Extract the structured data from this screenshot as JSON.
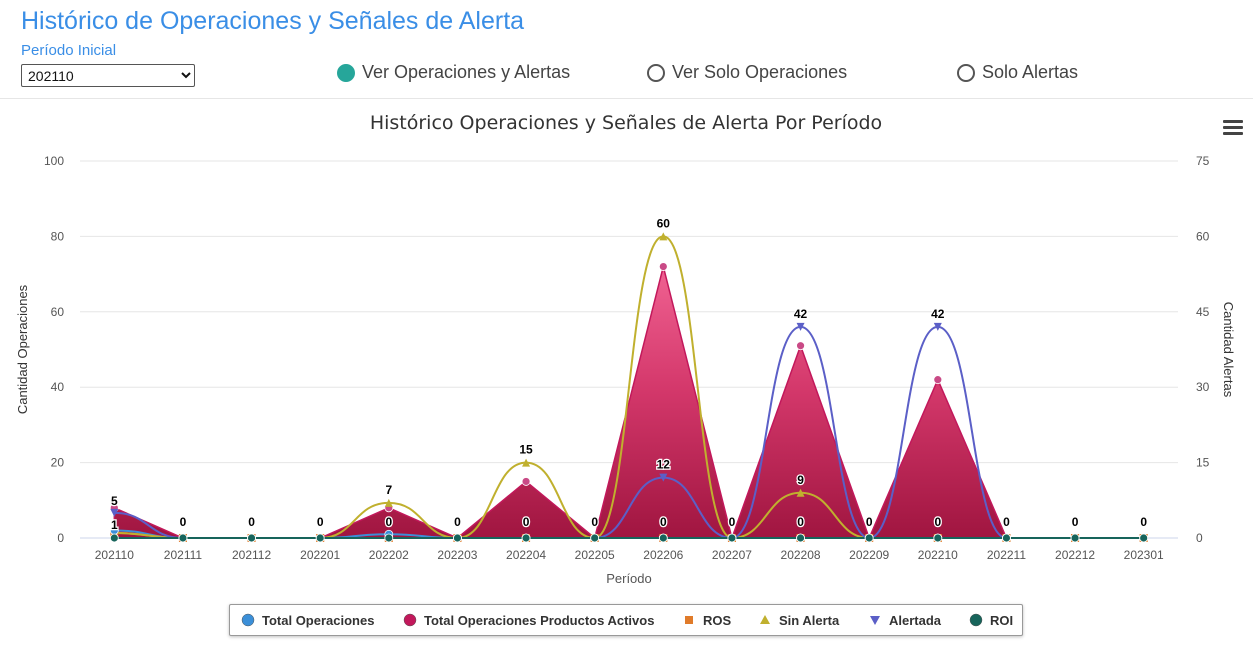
{
  "page": {
    "title": "Histórico de Operaciones y Señales de Alerta",
    "period_label": "Período Inicial",
    "period_selected": "202110"
  },
  "view_options": [
    {
      "label": "Ver Operaciones y Alertas",
      "checked": true
    },
    {
      "label": "Ver Solo Operaciones",
      "checked": false
    },
    {
      "label": "Solo Alertas",
      "checked": false
    }
  ],
  "colors": {
    "title": "#3a8ee6",
    "radio_checked": "#26a69a",
    "total_operaciones": "#3b8fd8",
    "productos_activos": "#c2185b",
    "ros": "#e07b2a",
    "sin_alerta": "#c0b02e",
    "alertada": "#5b5fc7",
    "roi": "#17645b"
  },
  "chart_data": {
    "type": "area",
    "title": "Histórico Operaciones y Señales de Alerta Por Período",
    "xlabel": "Período",
    "ylabel_left": "Cantidad Operaciones",
    "ylabel_right": "Cantidad Alertas",
    "ylim_left": [
      0,
      100
    ],
    "ylim_right": [
      0,
      75
    ],
    "yticks_left": [
      0,
      20,
      40,
      60,
      80,
      100
    ],
    "yticks_right": [
      0,
      15,
      30,
      45,
      60,
      75
    ],
    "grid": true,
    "legend_position": "bottom",
    "categories": [
      "202110",
      "202111",
      "202112",
      "202201",
      "202202",
      "202203",
      "202204",
      "202205",
      "202206",
      "202207",
      "202208",
      "202209",
      "202210",
      "202211",
      "202212",
      "202301"
    ],
    "series": [
      {
        "name": "Total Operaciones",
        "axis": "left",
        "kind": "line",
        "marker": "circle",
        "color_key": "total_operaciones",
        "values": [
          2,
          0,
          0,
          0,
          1,
          0,
          0,
          0,
          0,
          0,
          0,
          0,
          0,
          0,
          0,
          0
        ]
      },
      {
        "name": "Total Operaciones Productos Activos",
        "axis": "left",
        "kind": "area",
        "marker": "circle",
        "color_key": "productos_activos",
        "values": [
          8,
          0,
          0,
          0,
          8,
          0,
          15,
          0,
          72,
          0,
          51,
          0,
          42,
          0,
          0,
          0
        ]
      },
      {
        "name": "ROS",
        "axis": "right",
        "kind": "line",
        "marker": "square",
        "color_key": "ros",
        "values": [
          1,
          0,
          0,
          0,
          0,
          0,
          0,
          0,
          0,
          0,
          0,
          0,
          0,
          0,
          0,
          0
        ]
      },
      {
        "name": "Sin Alerta",
        "axis": "right",
        "kind": "line",
        "marker": "triangle",
        "color_key": "sin_alerta",
        "values": [
          1,
          0,
          0,
          0,
          7,
          0,
          15,
          0,
          60,
          0,
          9,
          0,
          0,
          0,
          0,
          0
        ]
      },
      {
        "name": "Alertada",
        "axis": "right",
        "kind": "line",
        "marker": "triangle-down",
        "color_key": "alertada",
        "values": [
          5,
          0,
          0,
          0,
          0,
          0,
          0,
          0,
          12,
          0,
          42,
          0,
          42,
          0,
          0,
          0
        ]
      },
      {
        "name": "ROI",
        "axis": "right",
        "kind": "line",
        "marker": "circle",
        "color_key": "roi",
        "values": [
          0,
          0,
          0,
          0,
          0,
          0,
          0,
          0,
          0,
          0,
          0,
          0,
          0,
          0,
          0,
          0
        ]
      }
    ],
    "data_labels": [
      {
        "category": "202110",
        "text": "5",
        "value": 5
      },
      {
        "category": "202110",
        "text": "1",
        "value": 1
      },
      {
        "category": "202111",
        "text": "0",
        "value": 0
      },
      {
        "category": "202112",
        "text": "0",
        "value": 0
      },
      {
        "category": "202201",
        "text": "0",
        "value": 0
      },
      {
        "category": "202202",
        "text": "7",
        "value": 7
      },
      {
        "category": "202202",
        "text": "0",
        "value": 0
      },
      {
        "category": "202203",
        "text": "0",
        "value": 0
      },
      {
        "category": "202204",
        "text": "15",
        "value": 15
      },
      {
        "category": "202204",
        "text": "0",
        "value": 0
      },
      {
        "category": "202205",
        "text": "0",
        "value": 0
      },
      {
        "category": "202206",
        "text": "60",
        "value": 60
      },
      {
        "category": "202206",
        "text": "12",
        "value": 12
      },
      {
        "category": "202206",
        "text": "0",
        "value": 0
      },
      {
        "category": "202207",
        "text": "0",
        "value": 0
      },
      {
        "category": "202208",
        "text": "42",
        "value": 42
      },
      {
        "category": "202208",
        "text": "9",
        "value": 9
      },
      {
        "category": "202208",
        "text": "0",
        "value": 0
      },
      {
        "category": "202209",
        "text": "0",
        "value": 0
      },
      {
        "category": "202210",
        "text": "42",
        "value": 42
      },
      {
        "category": "202210",
        "text": "0",
        "value": 0
      },
      {
        "category": "202211",
        "text": "0",
        "value": 0
      },
      {
        "category": "202212",
        "text": "0",
        "value": 0
      },
      {
        "category": "202301",
        "text": "0",
        "value": 0
      }
    ]
  }
}
